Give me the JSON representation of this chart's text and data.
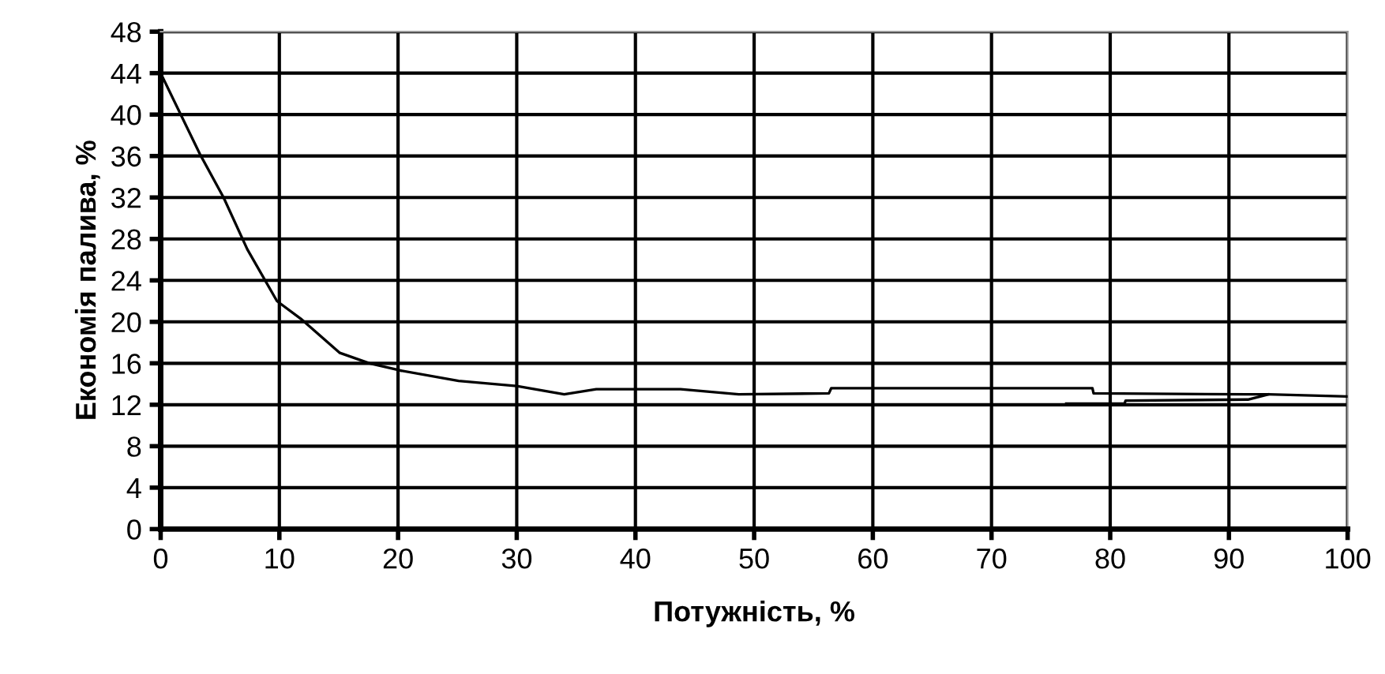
{
  "chart_data": {
    "type": "line",
    "xlabel": "Потужність, %",
    "ylabel": "Економія палива, %",
    "xlim": [
      0,
      100
    ],
    "xticks": [
      0,
      10,
      20,
      30,
      40,
      50,
      60,
      70,
      80,
      90,
      100
    ],
    "ylim": [
      0,
      48
    ],
    "yticks": [
      0,
      4,
      8,
      12,
      16,
      20,
      24,
      28,
      32,
      36,
      40,
      44,
      48
    ],
    "grid": true,
    "marker": "none",
    "line_style": "solid",
    "series": [
      {
        "color": "#000000",
        "x": [
          0,
          3.3,
          5.3,
          7.3,
          9.8,
          11.8,
          15.1,
          17.6,
          20.2,
          25.1,
          30,
          34,
          36.7,
          43.8,
          48.7,
          56.3,
          56.5,
          78.5,
          78.6,
          91.6,
          93.3,
          100
        ],
        "values": [
          44,
          36.2,
          32,
          27,
          22,
          20.3,
          17,
          16,
          15.3,
          14.3,
          13.8,
          13,
          13.5,
          13.5,
          13,
          13.1,
          13.6,
          13.6,
          13.1,
          13.0,
          13.0,
          12.8
        ]
      },
      {
        "color": "#000000",
        "x": [
          76.3,
          81.2,
          81.3,
          91.6,
          93.3
        ],
        "values": [
          12.1,
          12.1,
          12.4,
          12.5,
          13.0
        ]
      }
    ]
  }
}
